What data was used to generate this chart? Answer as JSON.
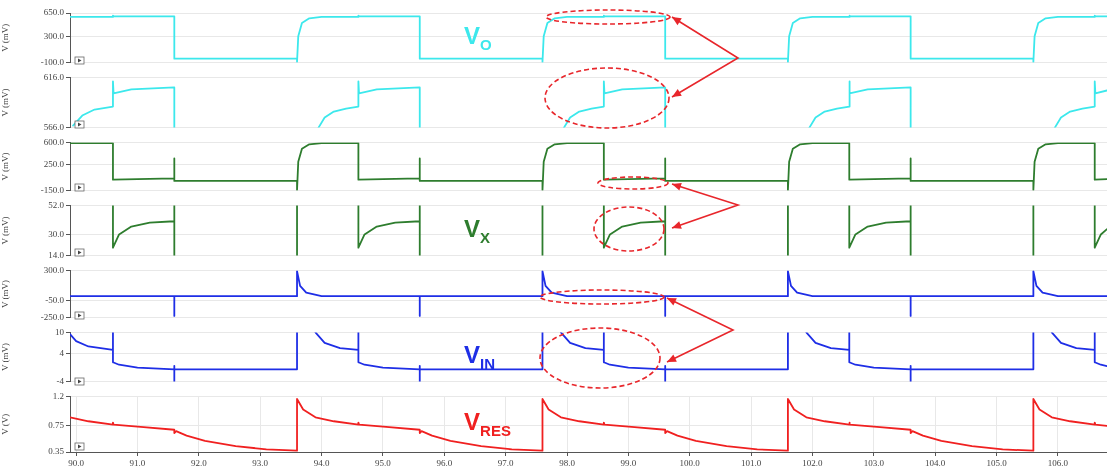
{
  "chart_data": [
    {
      "type": "line",
      "ylabel": "V (mV)",
      "ylim": [
        -100,
        650
      ],
      "yticks": [
        {
          "value": 650,
          "label": "650.0"
        },
        {
          "value": 300,
          "label": "300.0"
        },
        {
          "value": -100,
          "label": "-100.0"
        }
      ],
      "xlim": [
        89.9,
        106.8
      ],
      "xticks": [
        {
          "value": 90,
          "label": null
        },
        {
          "value": 91,
          "label": null
        },
        {
          "value": 92,
          "label": null
        },
        {
          "value": 93,
          "label": null
        },
        {
          "value": 94,
          "label": null
        },
        {
          "value": 95,
          "label": null
        },
        {
          "value": 96,
          "label": null
        },
        {
          "value": 97,
          "label": null
        },
        {
          "value": 98,
          "label": null
        },
        {
          "value": 99,
          "label": null
        },
        {
          "value": 100,
          "label": null
        },
        {
          "value": 101,
          "label": null
        },
        {
          "value": 102,
          "label": null
        },
        {
          "value": 103,
          "label": null
        },
        {
          "value": 104,
          "label": null
        },
        {
          "value": 105,
          "label": null
        },
        {
          "value": 106,
          "label": null
        }
      ],
      "tick_labels": "y",
      "grid": true,
      "series": [
        {
          "name": "V$_{O}$",
          "color": "#3ce8ec",
          "x": [
            89.9,
            90.6,
            90.6,
            90.61,
            91.6,
            91.6,
            93.6,
            93.6,
            93.62,
            93.68,
            93.8,
            94.0,
            94.6,
            94.6,
            94.61,
            95.6,
            95.6,
            97.6,
            97.6,
            97.62,
            97.68,
            97.8,
            98.0,
            98.6,
            98.6,
            98.61,
            99.6,
            99.6,
            101.6,
            101.6,
            101.62,
            101.68,
            101.8,
            102.0,
            102.6,
            102.6,
            102.61,
            103.6,
            103.6,
            105.6,
            105.6,
            105.62,
            105.68,
            105.8,
            106.0,
            106.6,
            106.6,
            106.61,
            106.8
          ],
          "values": [
            590,
            590,
            610,
            600,
            600,
            -40,
            -40,
            -90,
            300,
            500,
            570,
            590,
            590,
            610,
            600,
            600,
            -40,
            -40,
            -90,
            300,
            500,
            570,
            590,
            590,
            610,
            600,
            600,
            -40,
            -40,
            -90,
            300,
            500,
            570,
            590,
            590,
            610,
            600,
            600,
            -40,
            -40,
            -90,
            300,
            500,
            570,
            590,
            590,
            610,
            600,
            600
          ]
        }
      ]
    },
    {
      "type": "line",
      "ylabel": "V (mV)",
      "ylim": [
        566,
        616
      ],
      "yticks": [
        {
          "value": 616,
          "label": "616.0"
        },
        {
          "value": 566,
          "label": "566.0"
        }
      ],
      "xlim": [
        89.9,
        106.8
      ],
      "xticks": [
        {
          "value": 90,
          "label": null
        },
        {
          "value": 91,
          "label": null
        },
        {
          "value": 92,
          "label": null
        },
        {
          "value": 93,
          "label": null
        },
        {
          "value": 94,
          "label": null
        },
        {
          "value": 95,
          "label": null
        },
        {
          "value": 96,
          "label": null
        },
        {
          "value": 97,
          "label": null
        },
        {
          "value": 98,
          "label": null
        },
        {
          "value": 99,
          "label": null
        },
        {
          "value": 100,
          "label": null
        },
        {
          "value": 101,
          "label": null
        },
        {
          "value": 102,
          "label": null
        },
        {
          "value": 103,
          "label": null
        },
        {
          "value": 104,
          "label": null
        },
        {
          "value": 105,
          "label": null
        },
        {
          "value": 106,
          "label": null
        }
      ],
      "tick_labels": "y",
      "grid": true,
      "series": [
        {
          "color": "#3ce8ec",
          "x": [
            89.95,
            90.1,
            90.3,
            90.6,
            90.6,
            90.61,
            90.9,
            91.6,
            91.6,
            91.61,
            93.95,
            94.05,
            94.2,
            94.4,
            94.6,
            94.6,
            94.61,
            94.9,
            95.6,
            95.6,
            95.61,
            97.95,
            98.05,
            98.2,
            98.4,
            98.6,
            98.6,
            98.61,
            98.9,
            99.6,
            99.6,
            99.61,
            101.95,
            102.05,
            102.2,
            102.4,
            102.6,
            102.6,
            102.61,
            102.9,
            103.6,
            103.6,
            103.61,
            105.95,
            106.05,
            106.2,
            106.4,
            106.6,
            106.6,
            106.61,
            106.8
          ],
          "values": [
            568,
            578,
            584,
            587,
            612,
            600,
            604,
            606,
            566,
            null,
            566,
            576,
            582,
            585,
            587,
            612,
            600,
            604,
            606,
            566,
            null,
            566,
            576,
            582,
            585,
            587,
            612,
            600,
            604,
            606,
            566,
            null,
            566,
            576,
            582,
            585,
            587,
            612,
            600,
            604,
            606,
            566,
            null,
            566,
            576,
            582,
            585,
            587,
            612,
            600,
            603
          ]
        }
      ]
    },
    {
      "type": "line",
      "ylabel": "V (mV)",
      "ylim": [
        -150,
        600
      ],
      "yticks": [
        {
          "value": 600,
          "label": "600.0"
        },
        {
          "value": 250,
          "label": "250.0"
        },
        {
          "value": -150,
          "label": "-150.0"
        }
      ],
      "xlim": [
        89.9,
        106.8
      ],
      "xticks": [
        {
          "value": 90,
          "label": null
        },
        {
          "value": 91,
          "label": null
        },
        {
          "value": 92,
          "label": null
        },
        {
          "value": 93,
          "label": null
        },
        {
          "value": 94,
          "label": null
        },
        {
          "value": 95,
          "label": null
        },
        {
          "value": 96,
          "label": null
        },
        {
          "value": 97,
          "label": null
        },
        {
          "value": 98,
          "label": null
        },
        {
          "value": 99,
          "label": null
        },
        {
          "value": 100,
          "label": null
        },
        {
          "value": 101,
          "label": null
        },
        {
          "value": 102,
          "label": null
        },
        {
          "value": 103,
          "label": null
        },
        {
          "value": 104,
          "label": null
        },
        {
          "value": 105,
          "label": null
        },
        {
          "value": 106,
          "label": null
        }
      ],
      "tick_labels": "y",
      "grid": true,
      "series": [
        {
          "color": "#2e7d2e",
          "x": [
            89.9,
            90.6,
            90.6,
            91.6,
            91.6,
            91.6,
            93.6,
            93.6,
            93.62,
            93.68,
            93.8,
            94.0,
            94.6,
            94.6,
            95.6,
            95.6,
            95.6,
            97.6,
            97.6,
            97.62,
            97.68,
            97.8,
            98.0,
            98.6,
            98.6,
            99.6,
            99.6,
            99.6,
            101.6,
            101.6,
            101.62,
            101.68,
            101.8,
            102.0,
            102.6,
            102.6,
            103.6,
            103.6,
            103.6,
            105.6,
            105.6,
            105.62,
            105.68,
            105.8,
            106.0,
            106.6,
            106.6,
            106.8
          ],
          "values": [
            590,
            590,
            20,
            40,
            350,
            0,
            0,
            -140,
            300,
            500,
            570,
            590,
            590,
            20,
            40,
            350,
            0,
            0,
            -140,
            300,
            500,
            570,
            590,
            590,
            20,
            40,
            350,
            0,
            0,
            -140,
            300,
            500,
            570,
            590,
            590,
            20,
            40,
            350,
            0,
            0,
            -140,
            300,
            500,
            570,
            590,
            590,
            20,
            30
          ]
        }
      ]
    },
    {
      "type": "line",
      "ylabel": "V (mV)",
      "ylim": [
        14,
        52
      ],
      "yticks": [
        {
          "value": 52,
          "label": "52.0"
        },
        {
          "value": 30,
          "label": "30.0"
        },
        {
          "value": 14,
          "label": "14.0"
        }
      ],
      "xlim": [
        89.9,
        106.8
      ],
      "xticks": [
        {
          "value": 90,
          "label": null
        },
        {
          "value": 91,
          "label": null
        },
        {
          "value": 92,
          "label": null
        },
        {
          "value": 93,
          "label": null
        },
        {
          "value": 94,
          "label": null
        },
        {
          "value": 95,
          "label": null
        },
        {
          "value": 96,
          "label": null
        },
        {
          "value": 97,
          "label": null
        },
        {
          "value": 98,
          "label": null
        },
        {
          "value": 99,
          "label": null
        },
        {
          "value": 100,
          "label": null
        },
        {
          "value": 101,
          "label": null
        },
        {
          "value": 102,
          "label": null
        },
        {
          "value": 103,
          "label": null
        },
        {
          "value": 104,
          "label": null
        },
        {
          "value": 105,
          "label": null
        },
        {
          "value": 106,
          "label": null
        }
      ],
      "tick_labels": "y",
      "grid": true,
      "series": [
        {
          "name": "V$_{X}$",
          "color": "#2e7d2e",
          "x": [
            90.6,
            90.6,
            90.7,
            90.9,
            91.2,
            91.6,
            91.6,
            91.6,
            91.61,
            93.6,
            93.6,
            93.601,
            94.6,
            94.6,
            94.7,
            94.9,
            95.2,
            95.6,
            95.6,
            95.6,
            95.601,
            97.6,
            97.6,
            97.601,
            98.6,
            98.6,
            98.7,
            98.9,
            99.2,
            99.6,
            99.6,
            99.6,
            99.601,
            101.6,
            101.6,
            101.601,
            102.6,
            102.6,
            102.7,
            102.9,
            103.2,
            103.6,
            103.6,
            103.6,
            103.601,
            105.6,
            105.6,
            105.601,
            106.6,
            106.6,
            106.7,
            106.8
          ],
          "values": [
            52,
            20,
            30,
            36,
            39,
            40,
            52,
            14,
            null,
            14,
            52,
            null,
            52,
            20,
            30,
            36,
            39,
            40,
            52,
            14,
            null,
            14,
            52,
            null,
            52,
            20,
            30,
            36,
            39,
            40,
            52,
            14,
            null,
            14,
            52,
            null,
            52,
            20,
            30,
            36,
            39,
            40,
            52,
            14,
            null,
            14,
            52,
            null,
            52,
            20,
            30,
            34
          ]
        }
      ]
    },
    {
      "type": "line",
      "ylabel": "V (mV)",
      "ylim": [
        -250,
        300
      ],
      "yticks": [
        {
          "value": 300,
          "label": "300.0"
        },
        {
          "value": -50,
          "label": "-50.0"
        },
        {
          "value": -250,
          "label": "-250.0"
        }
      ],
      "xlim": [
        89.9,
        106.8
      ],
      "xticks": [
        {
          "value": 90,
          "label": null
        },
        {
          "value": 91,
          "label": null
        },
        {
          "value": 92,
          "label": null
        },
        {
          "value": 93,
          "label": null
        },
        {
          "value": 94,
          "label": null
        },
        {
          "value": 95,
          "label": null
        },
        {
          "value": 96,
          "label": null
        },
        {
          "value": 97,
          "label": null
        },
        {
          "value": 98,
          "label": null
        },
        {
          "value": 99,
          "label": null
        },
        {
          "value": 100,
          "label": null
        },
        {
          "value": 101,
          "label": null
        },
        {
          "value": 102,
          "label": null
        },
        {
          "value": 103,
          "label": null
        },
        {
          "value": 104,
          "label": null
        },
        {
          "value": 105,
          "label": null
        },
        {
          "value": 106,
          "label": null
        }
      ],
      "tick_labels": "y",
      "grid": true,
      "series": [
        {
          "color": "#1e2ee6",
          "x": [
            89.9,
            91.6,
            91.6,
            91.6,
            93.6,
            93.6,
            93.65,
            93.75,
            94.0,
            95.6,
            95.6,
            95.6,
            97.6,
            97.6,
            97.65,
            97.75,
            98.0,
            99.6,
            99.6,
            99.6,
            101.6,
            101.6,
            101.65,
            101.75,
            102.0,
            103.6,
            103.6,
            103.6,
            105.6,
            105.6,
            105.65,
            105.75,
            106.0,
            106.8
          ],
          "values": [
            0,
            0,
            -230,
            0,
            0,
            290,
            120,
            40,
            0,
            0,
            -230,
            0,
            0,
            290,
            120,
            40,
            0,
            0,
            -230,
            0,
            0,
            290,
            120,
            40,
            0,
            0,
            -230,
            0,
            0,
            290,
            120,
            40,
            0,
            0
          ]
        }
      ]
    },
    {
      "type": "line",
      "ylabel": "V (mV)",
      "ylim": [
        -4,
        10
      ],
      "yticks": [
        10,
        4,
        -4
      ],
      "xlim": [
        89.9,
        106.8
      ],
      "xticks": [
        {
          "value": 90,
          "label": null
        },
        {
          "value": 91,
          "label": null
        },
        {
          "value": 92,
          "label": null
        },
        {
          "value": 93,
          "label": null
        },
        {
          "value": 94,
          "label": null
        },
        {
          "value": 95,
          "label": null
        },
        {
          "value": 96,
          "label": null
        },
        {
          "value": 97,
          "label": null
        },
        {
          "value": 98,
          "label": null
        },
        {
          "value": 99,
          "label": null
        },
        {
          "value": 100,
          "label": null
        },
        {
          "value": 101,
          "label": null
        },
        {
          "value": 102,
          "label": null
        },
        {
          "value": 103,
          "label": null
        },
        {
          "value": 104,
          "label": null
        },
        {
          "value": 105,
          "label": null
        },
        {
          "value": 106,
          "label": null
        }
      ],
      "tick_labels": "y",
      "grid": true,
      "series": [
        {
          "name": "V$_{IN}$",
          "color": "#1e2ee6",
          "x": [
            89.9,
            90.0,
            90.2,
            90.6,
            90.6,
            90.6,
            90.7,
            91.0,
            91.6,
            91.6,
            91.6,
            91.6,
            93.6,
            93.6,
            93.601,
            93.9,
            94.05,
            94.3,
            94.6,
            94.6,
            94.6,
            94.7,
            95.0,
            95.6,
            95.6,
            95.6,
            95.6,
            97.6,
            97.6,
            97.601,
            97.9,
            98.05,
            98.3,
            98.6,
            98.6,
            98.6,
            98.7,
            99.0,
            99.6,
            99.6,
            99.6,
            99.6,
            101.6,
            101.6,
            101.601,
            101.9,
            102.05,
            102.3,
            102.6,
            102.6,
            102.6,
            102.7,
            103.0,
            103.6,
            103.6,
            103.6,
            103.6,
            105.6,
            105.6,
            105.601,
            105.9,
            106.05,
            106.3,
            106.6,
            106.6,
            106.6,
            106.7,
            106.8
          ],
          "values": [
            9.5,
            7.5,
            6,
            5,
            10,
            1.5,
            0.8,
            0,
            -0.5,
            -4,
            0.5,
            -0.5,
            -0.5,
            10,
            null,
            10,
            7,
            5.5,
            5,
            10,
            1.5,
            0.8,
            0,
            -0.5,
            -4,
            0.5,
            -0.5,
            -0.5,
            10,
            null,
            10,
            7,
            5.5,
            5,
            10,
            1.5,
            0.8,
            0,
            -0.5,
            -4,
            0.5,
            -0.5,
            -0.5,
            10,
            null,
            10,
            7,
            5.5,
            5,
            10,
            1.5,
            0.8,
            0,
            -0.5,
            -4,
            0.5,
            -0.5,
            -0.5,
            10,
            null,
            10,
            7,
            5.5,
            5,
            10,
            1.5,
            0.8,
            0.4
          ]
        }
      ]
    },
    {
      "type": "line",
      "ylabel": "V (V)",
      "ylim": [
        0.35,
        1.2
      ],
      "yticks": [
        {
          "value": 1.2,
          "label": "1.2"
        },
        0.75,
        0.35
      ],
      "xlim": [
        89.9,
        106.8
      ],
      "xticks": [
        {
          "value": 90,
          "label": "90.0"
        },
        {
          "value": 91,
          "label": "91.0"
        },
        {
          "value": 92,
          "label": "92.0"
        },
        {
          "value": 93,
          "label": "93.0"
        },
        {
          "value": 94,
          "label": "94.0"
        },
        {
          "value": 95,
          "label": "95.0"
        },
        {
          "value": 96,
          "label": "96.0"
        },
        {
          "value": 97,
          "label": "97.0"
        },
        {
          "value": 98,
          "label": "98.0"
        },
        {
          "value": 99,
          "label": "99.0"
        },
        {
          "value": 100,
          "label": "100.0"
        },
        {
          "value": 101,
          "label": "101.0"
        },
        {
          "value": 102,
          "label": "102.0"
        },
        {
          "value": 103,
          "label": "103.0"
        },
        {
          "value": 104,
          "label": "104.0"
        },
        {
          "value": 105,
          "label": "105.0"
        },
        {
          "value": 106,
          "label": "106.0"
        }
      ],
      "grid": true,
      "series": [
        {
          "name": "V$_{RES}$",
          "color": "#f02020",
          "x": [
            89.9,
            90.2,
            90.6,
            90.6,
            90.61,
            91.1,
            91.6,
            91.6,
            91.63,
            91.8,
            92.1,
            92.6,
            93.1,
            93.6,
            93.6,
            93.7,
            93.9,
            94.2,
            94.6,
            94.6,
            94.61,
            95.1,
            95.6,
            95.6,
            95.63,
            95.8,
            96.1,
            96.6,
            97.1,
            97.6,
            97.6,
            97.7,
            97.9,
            98.2,
            98.6,
            98.6,
            98.61,
            99.1,
            99.6,
            99.6,
            99.63,
            99.8,
            100.1,
            100.6,
            101.1,
            101.6,
            101.6,
            101.7,
            101.9,
            102.2,
            102.6,
            102.6,
            102.61,
            103.1,
            103.6,
            103.6,
            103.63,
            103.8,
            104.1,
            104.6,
            105.1,
            105.6,
            105.6,
            105.7,
            105.9,
            106.2,
            106.6,
            106.6,
            106.61,
            106.8
          ],
          "values": [
            0.88,
            0.82,
            0.77,
            0.8,
            0.77,
            0.73,
            0.69,
            0.64,
            0.67,
            0.6,
            0.52,
            0.44,
            0.39,
            0.37,
            1.16,
            1.0,
            0.88,
            0.82,
            0.77,
            0.8,
            0.77,
            0.73,
            0.69,
            0.64,
            0.67,
            0.6,
            0.52,
            0.44,
            0.39,
            0.37,
            1.16,
            1.0,
            0.88,
            0.82,
            0.77,
            0.8,
            0.77,
            0.73,
            0.69,
            0.64,
            0.67,
            0.6,
            0.52,
            0.44,
            0.39,
            0.37,
            1.16,
            1.0,
            0.88,
            0.82,
            0.77,
            0.8,
            0.77,
            0.73,
            0.69,
            0.64,
            0.67,
            0.6,
            0.52,
            0.44,
            0.39,
            0.37,
            1.16,
            1.0,
            0.88,
            0.82,
            0.77,
            0.8,
            0.77,
            0.75
          ]
        }
      ]
    }
  ]
}
